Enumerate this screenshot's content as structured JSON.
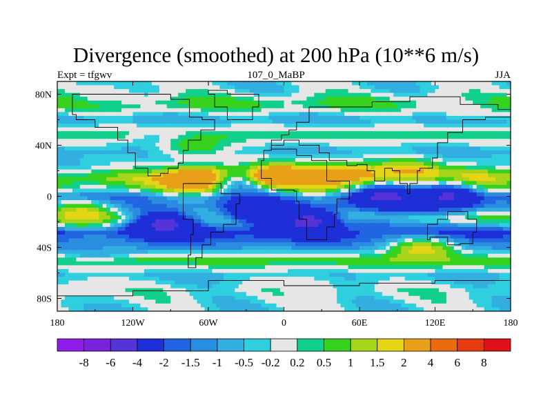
{
  "chart_data": {
    "type": "heatmap",
    "title": "Divergence (smoothed) at 200 hPa (10**6 m/s)",
    "subtitle_left": "Expt = tfgwv",
    "subtitle_center": "107_0_MaBP",
    "subtitle_right": "JJA",
    "xlim": [
      -180,
      180
    ],
    "ylim": [
      -90,
      90
    ],
    "x_ticks": [
      {
        "value": -180,
        "label": "180"
      },
      {
        "value": -120,
        "label": "120W"
      },
      {
        "value": -60,
        "label": "60W"
      },
      {
        "value": 0,
        "label": "0"
      },
      {
        "value": 60,
        "label": "60E"
      },
      {
        "value": 120,
        "label": "120E"
      },
      {
        "value": 180,
        "label": "180"
      }
    ],
    "y_ticks": [
      {
        "value": 80,
        "label": "80N"
      },
      {
        "value": 40,
        "label": "40N"
      },
      {
        "value": 0,
        "label": "0"
      },
      {
        "value": -40,
        "label": "40S"
      },
      {
        "value": -80,
        "label": "80S"
      }
    ],
    "colorbar": {
      "levels": [
        "-8",
        "-6",
        "-4",
        "-2",
        "-1.5",
        "-1",
        "-0.5",
        "-0.2",
        "0.2",
        "0.5",
        "1",
        "1.5",
        "2",
        "4",
        "6",
        "8"
      ],
      "colors": [
        "#8c1de6",
        "#7a22dc",
        "#5533d6",
        "#1f2fd8",
        "#2166e0",
        "#2b8de0",
        "#33aee0",
        "#2fcfe0",
        "#e6e6e6",
        "#10d08c",
        "#37d21e",
        "#a6d41b",
        "#e4d416",
        "#e8a018",
        "#ea6a10",
        "#e43a10",
        "#e0101a"
      ]
    },
    "bands": [
      {
        "lat": 84,
        "value": -0.3
      },
      {
        "lat": 72,
        "value": 0.7
      },
      {
        "lat": 60,
        "value": -0.8
      },
      {
        "lat": 48,
        "value": 0.6
      },
      {
        "lat": 36,
        "value": -0.7
      },
      {
        "lat": 24,
        "value": -0.4
      },
      {
        "lat": 14,
        "value": 1.2
      },
      {
        "lat": 6,
        "value": 0.4
      },
      {
        "lat": 0,
        "value": -1.6
      },
      {
        "lat": -8,
        "value": -1.2
      },
      {
        "lat": -18,
        "value": 0.6
      },
      {
        "lat": -28,
        "value": -2.5
      },
      {
        "lat": -40,
        "value": -1.1
      },
      {
        "lat": -50,
        "value": 0.8
      },
      {
        "lat": -62,
        "value": -0.6
      },
      {
        "lat": -74,
        "value": 0.0
      },
      {
        "lat": -86,
        "value": -0.3
      }
    ],
    "features": [
      {
        "lon": -140,
        "lat": 80,
        "value": 0.0
      },
      {
        "lon": -95,
        "lat": 44,
        "value": -0.6
      },
      {
        "lon": -70,
        "lat": 40,
        "value": 0.8
      },
      {
        "lon": -68,
        "lat": 13,
        "value": 4.2
      },
      {
        "lon": -22,
        "lat": 10,
        "value": -3.0
      },
      {
        "lon": -5,
        "lat": 15,
        "value": 4.0
      },
      {
        "lon": 30,
        "lat": 15,
        "value": 2.5
      },
      {
        "lon": 60,
        "lat": 14,
        "value": 2.8
      },
      {
        "lon": 100,
        "lat": 18,
        "value": 2.4
      },
      {
        "lon": 150,
        "lat": 12,
        "value": 2.2
      },
      {
        "lon": 80,
        "lat": 0,
        "value": -4.5
      },
      {
        "lon": 130,
        "lat": 0,
        "value": -4.2
      },
      {
        "lon": -95,
        "lat": -22,
        "value": -4.5
      },
      {
        "lon": -20,
        "lat": -12,
        "value": -4.0
      },
      {
        "lon": 20,
        "lat": -20,
        "value": -4.6
      },
      {
        "lon": 75,
        "lat": -26,
        "value": -1.8
      },
      {
        "lon": -160,
        "lat": -14,
        "value": 1.8
      },
      {
        "lon": 110,
        "lat": -42,
        "value": 1.8
      },
      {
        "lon": -150,
        "lat": -40,
        "value": -1.0
      },
      {
        "lon": -160,
        "lat": -72,
        "value": 0.0
      },
      {
        "lon": 20,
        "lat": -70,
        "value": 0.0
      },
      {
        "lon": 140,
        "lat": 70,
        "value": 0.0
      }
    ],
    "coastlines": [
      [
        [
          -168,
          80
        ],
        [
          -120,
          80
        ],
        [
          -90,
          76
        ],
        [
          -75,
          62
        ],
        [
          -65,
          60
        ],
        [
          -55,
          52
        ],
        [
          -66,
          44
        ],
        [
          -76,
          36
        ],
        [
          -80,
          26
        ],
        [
          -84,
          22
        ],
        [
          -92,
          18
        ],
        [
          -98,
          16
        ],
        [
          -108,
          22
        ],
        [
          -118,
          34
        ],
        [
          -124,
          44
        ],
        [
          -132,
          54
        ],
        [
          -150,
          60
        ],
        [
          -165,
          64
        ],
        [
          -168,
          80
        ]
      ],
      [
        [
          -80,
          10
        ],
        [
          -75,
          10
        ],
        [
          -62,
          10
        ],
        [
          -50,
          2
        ],
        [
          -35,
          -6
        ],
        [
          -38,
          -22
        ],
        [
          -48,
          -28
        ],
        [
          -58,
          -38
        ],
        [
          -65,
          -48
        ],
        [
          -70,
          -56
        ],
        [
          -76,
          -46
        ],
        [
          -74,
          -30
        ],
        [
          -72,
          -18
        ],
        [
          -80,
          -6
        ],
        [
          -80,
          10
        ]
      ],
      [
        [
          -10,
          36
        ],
        [
          -16,
          28
        ],
        [
          -18,
          14
        ],
        [
          -10,
          5
        ],
        [
          8,
          4
        ],
        [
          10,
          -4
        ],
        [
          12,
          -18
        ],
        [
          18,
          -34
        ],
        [
          28,
          -34
        ],
        [
          34,
          -24
        ],
        [
          40,
          -14
        ],
        [
          42,
          -2
        ],
        [
          52,
          12
        ],
        [
          44,
          12
        ],
        [
          34,
          28
        ],
        [
          22,
          32
        ],
        [
          10,
          37
        ],
        [
          -10,
          36
        ]
      ],
      [
        [
          -10,
          36
        ],
        [
          -10,
          44
        ],
        [
          -2,
          48
        ],
        [
          4,
          52
        ],
        [
          10,
          58
        ],
        [
          20,
          70
        ],
        [
          40,
          70
        ],
        [
          70,
          74
        ],
        [
          100,
          78
        ],
        [
          140,
          72
        ],
        [
          170,
          68
        ],
        [
          180,
          66
        ],
        [
          180,
          62
        ],
        [
          160,
          60
        ],
        [
          142,
          50
        ],
        [
          130,
          42
        ],
        [
          122,
          30
        ],
        [
          118,
          22
        ],
        [
          108,
          20
        ],
        [
          106,
          10
        ],
        [
          100,
          2
        ],
        [
          98,
          10
        ],
        [
          92,
          20
        ],
        [
          86,
          22
        ],
        [
          80,
          12
        ],
        [
          72,
          20
        ],
        [
          66,
          25
        ],
        [
          58,
          24
        ],
        [
          50,
          28
        ],
        [
          36,
          34
        ],
        [
          28,
          40
        ],
        [
          18,
          40
        ],
        [
          12,
          44
        ],
        [
          0,
          40
        ],
        [
          -10,
          36
        ]
      ],
      [
        [
          114,
          -22
        ],
        [
          122,
          -18
        ],
        [
          130,
          -12
        ],
        [
          142,
          -12
        ],
        [
          146,
          -18
        ],
        [
          153,
          -28
        ],
        [
          150,
          -37
        ],
        [
          140,
          -38
        ],
        [
          130,
          -32
        ],
        [
          116,
          -34
        ],
        [
          114,
          -22
        ]
      ],
      [
        [
          -45,
          60
        ],
        [
          -25,
          70
        ],
        [
          -20,
          80
        ],
        [
          -45,
          83
        ],
        [
          -60,
          80
        ],
        [
          -55,
          70
        ],
        [
          -45,
          60
        ]
      ],
      [
        [
          -180,
          -78
        ],
        [
          -120,
          -74
        ],
        [
          -60,
          -66
        ],
        [
          0,
          -70
        ],
        [
          60,
          -68
        ],
        [
          120,
          -66
        ],
        [
          180,
          -78
        ]
      ]
    ]
  }
}
